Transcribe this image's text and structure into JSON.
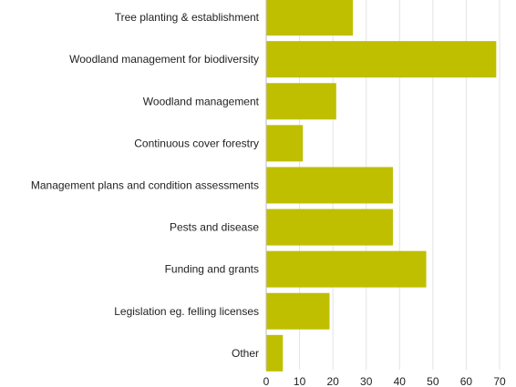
{
  "chart_data": {
    "type": "bar",
    "orientation": "horizontal",
    "title": "",
    "xlabel": "",
    "ylabel": "",
    "categories": [
      "Tree planting & establishment",
      "Woodland management for biodiversity",
      "Woodland management",
      "Continuous cover forestry",
      "Management plans and condition assessments",
      "Pests and disease",
      "Funding and grants",
      "Legislation eg. felling licenses",
      "Other"
    ],
    "values": [
      26,
      69,
      21,
      11,
      38,
      38,
      48,
      19,
      5
    ],
    "xlim": [
      0,
      70
    ],
    "xticks": [
      0,
      10,
      20,
      30,
      40,
      50,
      60,
      70
    ],
    "grid": "vertical",
    "legend": "none",
    "bar_color": "#bfbf00"
  }
}
